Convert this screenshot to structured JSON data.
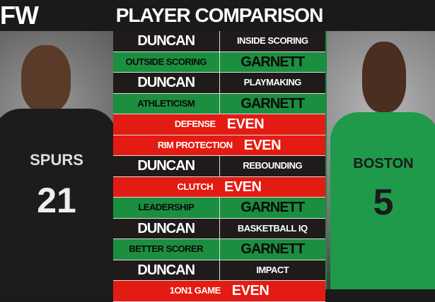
{
  "header": {
    "logo": "FW",
    "title": "PLAYER COMPARISON"
  },
  "photos": {
    "left": {
      "jersey_team": "SPURS",
      "jersey_number": "21",
      "jersey_color": "#1c1c1c"
    },
    "right": {
      "jersey_team": "BOSTON",
      "jersey_number": "5",
      "jersey_color": "#1e9a4a"
    }
  },
  "colors": {
    "black_row": "#1f1b1b",
    "green_row": "#1b8e3f",
    "red_row": "#e41b12"
  },
  "rows": [
    {
      "type": "black",
      "left": "DUNCAN",
      "right": "INSIDE SCORING"
    },
    {
      "type": "green",
      "left": "OUTSIDE SCORING",
      "right": "GARNETT"
    },
    {
      "type": "black",
      "left": "DUNCAN",
      "right": "PLAYMAKING"
    },
    {
      "type": "green",
      "left": "ATHLETICISM",
      "right": "GARNETT"
    },
    {
      "type": "red",
      "left": "DEFENSE",
      "right": "EVEN"
    },
    {
      "type": "red",
      "left": "RIM PROTECTION",
      "right": "EVEN"
    },
    {
      "type": "black",
      "left": "DUNCAN",
      "right": "REBOUNDING"
    },
    {
      "type": "red",
      "left": "CLUTCH",
      "right": "EVEN"
    },
    {
      "type": "green",
      "left": "LEADERSHIP",
      "right": "GARNETT"
    },
    {
      "type": "black",
      "left": "DUNCAN",
      "right": "BASKETBALL IQ"
    },
    {
      "type": "green",
      "left": "BETTER SCORER",
      "right": "GARNETT"
    },
    {
      "type": "black",
      "left": "DUNCAN",
      "right": "IMPACT"
    },
    {
      "type": "red",
      "left": "1ON1 GAME",
      "right": "EVEN"
    }
  ]
}
